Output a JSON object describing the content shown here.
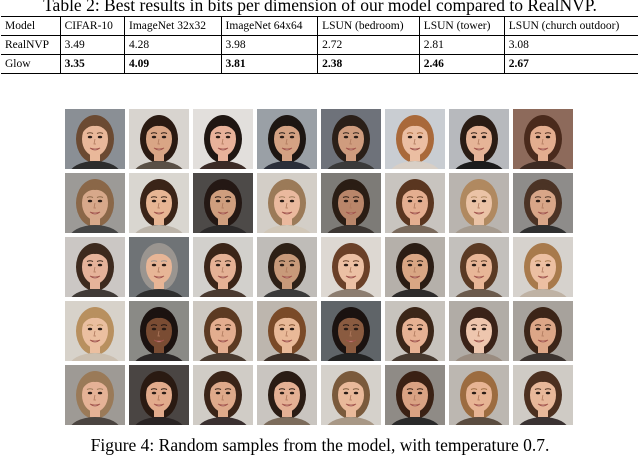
{
  "table": {
    "caption": "Table 2: Best results in bits per dimension of our model compared to RealNVP.",
    "headers": [
      "Model",
      "CIFAR-10",
      "ImageNet 32x32",
      "ImageNet 64x64",
      "LSUN (bedroom)",
      "LSUN (tower)",
      "LSUN (church outdoor)"
    ],
    "rows": [
      {
        "model": "RealNVP",
        "values": [
          "3.49",
          "4.28",
          "3.98",
          "2.72",
          "2.81",
          "3.08"
        ],
        "bold": false
      },
      {
        "model": "Glow",
        "values": [
          "3.35",
          "4.09",
          "3.81",
          "2.38",
          "2.46",
          "2.67"
        ],
        "bold": true
      }
    ]
  },
  "figure": {
    "caption": "Figure 4: Random samples from the model, with temperature 0.7.",
    "rows": 5,
    "cols": 8,
    "faces": [
      {
        "bg": "#8a8f95",
        "skin": "#e9b89a",
        "hair": "#6b4a32",
        "shirt": "#2d2d2d"
      },
      {
        "bg": "#d8d4cf",
        "skin": "#d9a585",
        "hair": "#2a1a12",
        "shirt": "#5a5046"
      },
      {
        "bg": "#e2dfdc",
        "skin": "#e8b29a",
        "hair": "#1f1612",
        "shirt": "#3b2b26"
      },
      {
        "bg": "#9aa0a6",
        "skin": "#d4a283",
        "hair": "#1d1612",
        "shirt": "#2b2f3a"
      },
      {
        "bg": "#6e727a",
        "skin": "#cf9c7e",
        "hair": "#2a1f18",
        "shirt": "#3a3a3a"
      },
      {
        "bg": "#c9cdd2",
        "skin": "#ebbea2",
        "hair": "#a9693a",
        "shirt": "#d8cfc6"
      },
      {
        "bg": "#b7b9bd",
        "skin": "#e6b497",
        "hair": "#2a1c14",
        "shirt": "#1c1c1c"
      },
      {
        "bg": "#8d6a5b",
        "skin": "#e3ad8f",
        "hair": "#4a2a1c",
        "shirt": "#3d2a22"
      },
      {
        "bg": "#9c9a97",
        "skin": "#d7a88a",
        "hair": "#8a6748",
        "shirt": "#444"
      },
      {
        "bg": "#d9d6d0",
        "skin": "#e7b594",
        "hair": "#3a2418",
        "shirt": "#bbb3a8"
      },
      {
        "bg": "#4d4a48",
        "skin": "#cf9e7e",
        "hair": "#241814",
        "shirt": "#2c2a2a"
      },
      {
        "bg": "#d3cec7",
        "skin": "#eab99e",
        "hair": "#9b7a58",
        "shirt": "#d1c7b8"
      },
      {
        "bg": "#7d7b77",
        "skin": "#b9866a",
        "hair": "#2a1d14",
        "shirt": "#3c3632"
      },
      {
        "bg": "#c8c4bf",
        "skin": "#e4ae90",
        "hair": "#5a3620",
        "shirt": "#7a6a5c"
      },
      {
        "bg": "#b9b4af",
        "skin": "#ebc3a6",
        "hair": "#b08960",
        "shirt": "#a59a8e"
      },
      {
        "bg": "#8e8c8a",
        "skin": "#d8a688",
        "hair": "#4b3325",
        "shirt": "#2f2f2f"
      },
      {
        "bg": "#cbc7c4",
        "skin": "#e6b39a",
        "hair": "#3d2a1e",
        "shirt": "#403a36"
      },
      {
        "bg": "#6f7376",
        "skin": "#e7b596",
        "hair": "#9a9590",
        "shirt": "#2e2e2e"
      },
      {
        "bg": "#d2d0cc",
        "skin": "#e5b195",
        "hair": "#3b2518",
        "shirt": "#4a3a30"
      },
      {
        "bg": "#bfbcb8",
        "skin": "#c89a7a",
        "hair": "#2d2016",
        "shirt": "#3a3a3a"
      },
      {
        "bg": "#ddd8d2",
        "skin": "#ecc0a4",
        "hair": "#6a4028",
        "shirt": "#8c7d70"
      },
      {
        "bg": "#b5b0aa",
        "skin": "#d9a684",
        "hair": "#2b1d14",
        "shirt": "#2d2b2b"
      },
      {
        "bg": "#c3c0bc",
        "skin": "#e8b697",
        "hair": "#5a3a24",
        "shirt": "#6b5a4c"
      },
      {
        "bg": "#d6d2cd",
        "skin": "#ecbfa2",
        "hair": "#a87a4c",
        "shirt": "#bfb2a4"
      },
      {
        "bg": "#d7d2ca",
        "skin": "#ebbfa0",
        "hair": "#b8905f",
        "shirt": "#cbbfb0"
      },
      {
        "bg": "#8a8a86",
        "skin": "#7a4c33",
        "hair": "#1b1210",
        "shirt": "#2a2626"
      },
      {
        "bg": "#cdc8c1",
        "skin": "#e3ad8f",
        "hair": "#5c3a22",
        "shirt": "#4a3b30"
      },
      {
        "bg": "#bdb6ae",
        "skin": "#e9b998",
        "hair": "#7a4a28",
        "shirt": "#3b2e26"
      },
      {
        "bg": "#5f6468",
        "skin": "#8a5b40",
        "hair": "#1a1210",
        "shirt": "#222"
      },
      {
        "bg": "#c7c3bd",
        "skin": "#e6b193",
        "hair": "#3b2618",
        "shirt": "#473a30"
      },
      {
        "bg": "#b1aca6",
        "skin": "#eec6ae",
        "hair": "#3a2218",
        "shirt": "#9a8c80"
      },
      {
        "bg": "#a7a29c",
        "skin": "#dca687",
        "hair": "#3c2518",
        "shirt": "#3c3430"
      },
      {
        "bg": "#9e9a95",
        "skin": "#e5b296",
        "hair": "#9a7a58",
        "shirt": "#4a4440"
      },
      {
        "bg": "#4a4543",
        "skin": "#e2ab8c",
        "hair": "#2a1a12",
        "shirt": "#2a2424"
      },
      {
        "bg": "#d0ccc6",
        "skin": "#dea98a",
        "hair": "#3a2418",
        "shirt": "#3a3030"
      },
      {
        "bg": "#c9c5c0",
        "skin": "#e4b094",
        "hair": "#2a1c14",
        "shirt": "#7c6c5c"
      },
      {
        "bg": "#d5d1cb",
        "skin": "#e9b99a",
        "hair": "#7a5a3c",
        "shirt": "#a89886"
      },
      {
        "bg": "#8f8b86",
        "skin": "#d9a283",
        "hair": "#3a2114",
        "shirt": "#2a2a2a"
      },
      {
        "bg": "#bcb7b1",
        "skin": "#e7b494",
        "hair": "#9c6c40",
        "shirt": "#5a4c40"
      },
      {
        "bg": "#cfcbc5",
        "skin": "#e8b89a",
        "hair": "#4c3020",
        "shirt": "#3a3232"
      }
    ]
  }
}
